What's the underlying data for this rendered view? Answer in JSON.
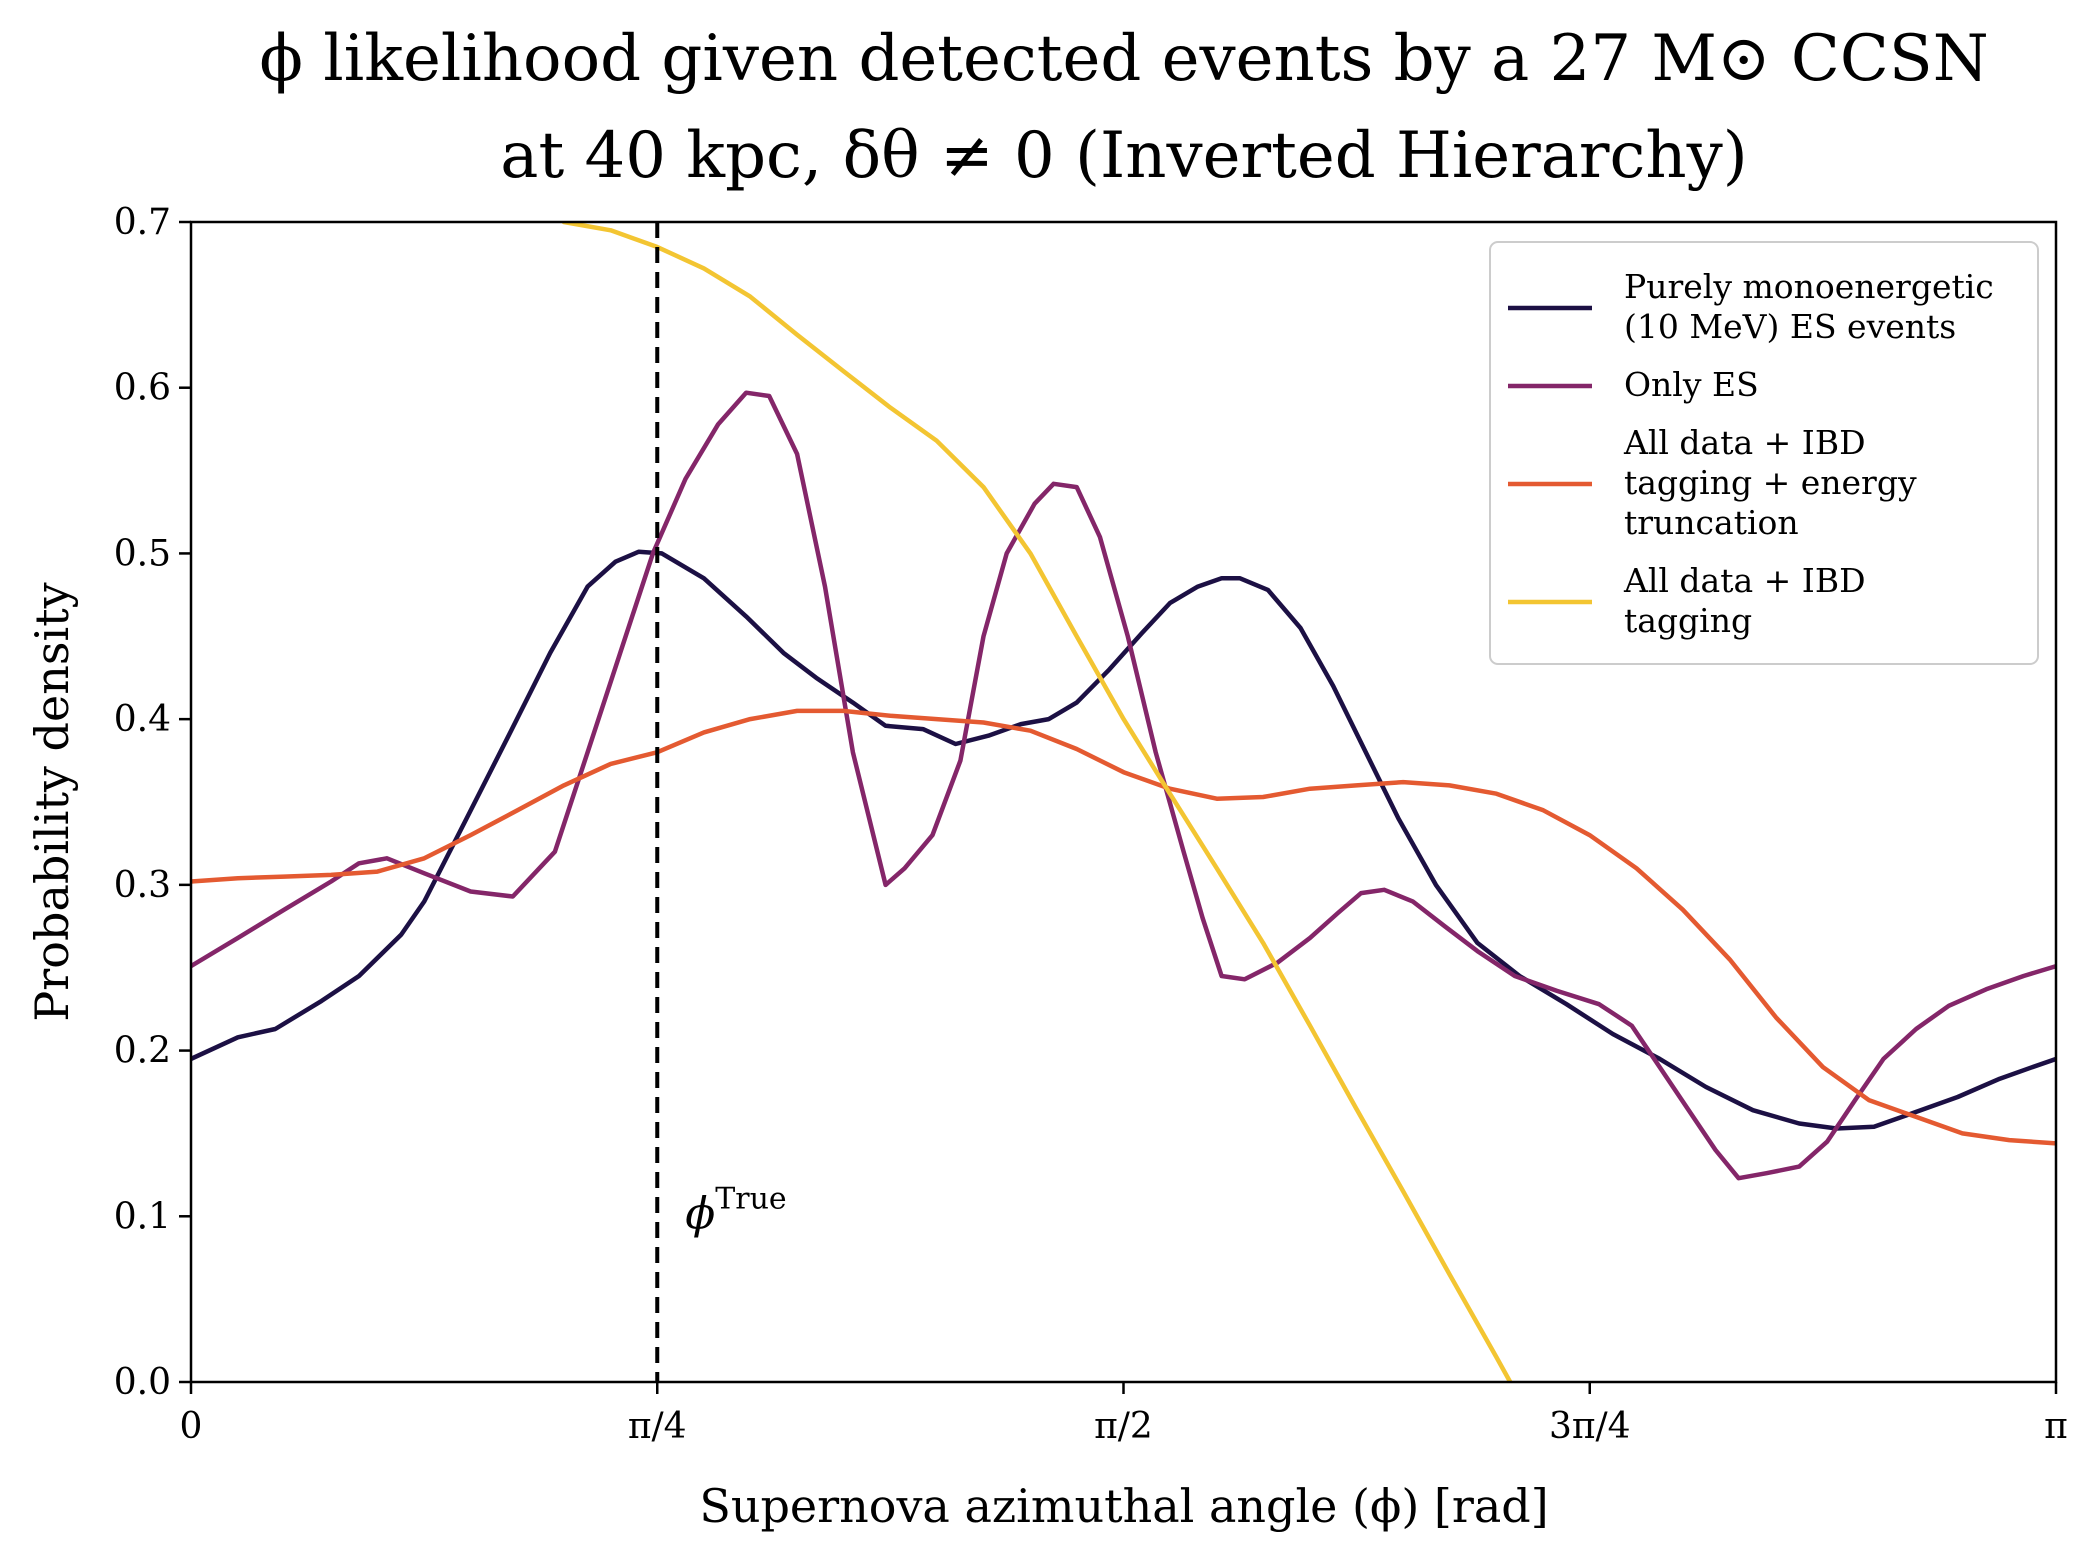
{
  "chart_data": {
    "type": "line",
    "title_lines": [
      "ϕ likelihood given detected events by a 27 M⊙ CCSN",
      "at 40 kpc, δθ ≠ 0 (Inverted Hierarchy)"
    ],
    "xlabel": "Supernova azimuthal angle (ϕ) [rad]",
    "ylabel": "Probability density",
    "xlim": [
      0,
      3.14159
    ],
    "ylim": [
      0,
      0.7
    ],
    "x_ticks": [
      {
        "value": 0,
        "label": "0"
      },
      {
        "value": 0.7854,
        "label": "π/4"
      },
      {
        "value": 1.5708,
        "label": "π/2"
      },
      {
        "value": 2.3562,
        "label": "3π/4"
      },
      {
        "value": 3.14159,
        "label": "π"
      }
    ],
    "y_ticks": [
      {
        "value": 0.0,
        "label": "0.0"
      },
      {
        "value": 0.1,
        "label": "0.1"
      },
      {
        "value": 0.2,
        "label": "0.2"
      },
      {
        "value": 0.3,
        "label": "0.3"
      },
      {
        "value": 0.4,
        "label": "0.4"
      },
      {
        "value": 0.5,
        "label": "0.5"
      },
      {
        "value": 0.6,
        "label": "0.6"
      },
      {
        "value": 0.7,
        "label": "0.7"
      }
    ],
    "grid": false,
    "legend_position": "top-right",
    "vline": {
      "x": 0.7854,
      "style": "dashed",
      "color": "#000000",
      "label_base": "ϕ",
      "label_sup": "True"
    },
    "series": [
      {
        "name": "Purely monoenergetic (10 MeV) ES events",
        "legend_lines": [
          "Purely monoenergetic",
          "(10 MeV) ES events"
        ],
        "color": "#1c1044",
        "points": [
          [
            0,
            0.195
          ],
          [
            0.079,
            0.208
          ],
          [
            0.142,
            0.213
          ],
          [
            0.22,
            0.23
          ],
          [
            0.283,
            0.245
          ],
          [
            0.354,
            0.27
          ],
          [
            0.393,
            0.29
          ],
          [
            0.464,
            0.34
          ],
          [
            0.535,
            0.39
          ],
          [
            0.605,
            0.44
          ],
          [
            0.668,
            0.48
          ],
          [
            0.715,
            0.495
          ],
          [
            0.754,
            0.501
          ],
          [
            0.793,
            0.5
          ],
          [
            0.864,
            0.485
          ],
          [
            0.935,
            0.462
          ],
          [
            0.998,
            0.44
          ],
          [
            1.053,
            0.425
          ],
          [
            1.115,
            0.41
          ],
          [
            1.17,
            0.396
          ],
          [
            1.233,
            0.394
          ],
          [
            1.288,
            0.385
          ],
          [
            1.343,
            0.39
          ],
          [
            1.398,
            0.397
          ],
          [
            1.445,
            0.4
          ],
          [
            1.492,
            0.41
          ],
          [
            1.547,
            0.43
          ],
          [
            1.602,
            0.452
          ],
          [
            1.649,
            0.47
          ],
          [
            1.696,
            0.48
          ],
          [
            1.736,
            0.485
          ],
          [
            1.767,
            0.485
          ],
          [
            1.814,
            0.478
          ],
          [
            1.869,
            0.455
          ],
          [
            1.924,
            0.42
          ],
          [
            1.979,
            0.38
          ],
          [
            2.034,
            0.34
          ],
          [
            2.097,
            0.3
          ],
          [
            2.167,
            0.265
          ],
          [
            2.238,
            0.245
          ],
          [
            2.317,
            0.228
          ],
          [
            2.395,
            0.21
          ],
          [
            2.474,
            0.195
          ],
          [
            2.552,
            0.178
          ],
          [
            2.631,
            0.164
          ],
          [
            2.709,
            0.156
          ],
          [
            2.772,
            0.153
          ],
          [
            2.835,
            0.154
          ],
          [
            2.906,
            0.163
          ],
          [
            2.976,
            0.172
          ],
          [
            3.047,
            0.183
          ],
          [
            3.102,
            0.19
          ],
          [
            3.142,
            0.195
          ]
        ]
      },
      {
        "name": "Only ES",
        "legend_lines": [
          "Only ES"
        ],
        "color": "#842669",
        "points": [
          [
            0,
            0.251
          ],
          [
            0.079,
            0.268
          ],
          [
            0.157,
            0.285
          ],
          [
            0.236,
            0.302
          ],
          [
            0.283,
            0.313
          ],
          [
            0.33,
            0.316
          ],
          [
            0.393,
            0.307
          ],
          [
            0.471,
            0.296
          ],
          [
            0.542,
            0.293
          ],
          [
            0.613,
            0.32
          ],
          [
            0.668,
            0.38
          ],
          [
            0.723,
            0.44
          ],
          [
            0.778,
            0.5
          ],
          [
            0.833,
            0.545
          ],
          [
            0.888,
            0.578
          ],
          [
            0.935,
            0.597
          ],
          [
            0.974,
            0.595
          ],
          [
            1.021,
            0.56
          ],
          [
            1.068,
            0.48
          ],
          [
            1.115,
            0.38
          ],
          [
            1.17,
            0.3
          ],
          [
            1.202,
            0.31
          ],
          [
            1.249,
            0.33
          ],
          [
            1.296,
            0.375
          ],
          [
            1.335,
            0.45
          ],
          [
            1.374,
            0.5
          ],
          [
            1.421,
            0.53
          ],
          [
            1.453,
            0.542
          ],
          [
            1.492,
            0.54
          ],
          [
            1.531,
            0.51
          ],
          [
            1.578,
            0.45
          ],
          [
            1.625,
            0.38
          ],
          [
            1.672,
            0.32
          ],
          [
            1.704,
            0.28
          ],
          [
            1.736,
            0.245
          ],
          [
            1.775,
            0.243
          ],
          [
            1.83,
            0.253
          ],
          [
            1.885,
            0.268
          ],
          [
            1.932,
            0.283
          ],
          [
            1.971,
            0.295
          ],
          [
            2.01,
            0.297
          ],
          [
            2.058,
            0.29
          ],
          [
            2.112,
            0.275
          ],
          [
            2.167,
            0.26
          ],
          [
            2.23,
            0.245
          ],
          [
            2.301,
            0.236
          ],
          [
            2.372,
            0.228
          ],
          [
            2.427,
            0.215
          ],
          [
            2.474,
            0.19
          ],
          [
            2.521,
            0.165
          ],
          [
            2.568,
            0.14
          ],
          [
            2.607,
            0.123
          ],
          [
            2.654,
            0.126
          ],
          [
            2.709,
            0.13
          ],
          [
            2.756,
            0.145
          ],
          [
            2.803,
            0.17
          ],
          [
            2.851,
            0.195
          ],
          [
            2.906,
            0.213
          ],
          [
            2.961,
            0.227
          ],
          [
            3.024,
            0.237
          ],
          [
            3.087,
            0.245
          ],
          [
            3.142,
            0.251
          ]
        ]
      },
      {
        "name": "All data + IBD tagging + energy truncation",
        "legend_lines": [
          "All data + IBD",
          "tagging + energy",
          "truncation"
        ],
        "color": "#e45a31",
        "points": [
          [
            0,
            0.302
          ],
          [
            0.079,
            0.304
          ],
          [
            0.157,
            0.305
          ],
          [
            0.236,
            0.306
          ],
          [
            0.314,
            0.308
          ],
          [
            0.393,
            0.316
          ],
          [
            0.471,
            0.33
          ],
          [
            0.55,
            0.345
          ],
          [
            0.628,
            0.36
          ],
          [
            0.707,
            0.373
          ],
          [
            0.785,
            0.38
          ],
          [
            0.864,
            0.392
          ],
          [
            0.942,
            0.4
          ],
          [
            1.021,
            0.405
          ],
          [
            1.099,
            0.405
          ],
          [
            1.178,
            0.402
          ],
          [
            1.256,
            0.4
          ],
          [
            1.335,
            0.398
          ],
          [
            1.414,
            0.393
          ],
          [
            1.492,
            0.382
          ],
          [
            1.571,
            0.368
          ],
          [
            1.649,
            0.358
          ],
          [
            1.728,
            0.352
          ],
          [
            1.806,
            0.353
          ],
          [
            1.885,
            0.358
          ],
          [
            1.963,
            0.36
          ],
          [
            2.042,
            0.362
          ],
          [
            2.12,
            0.36
          ],
          [
            2.199,
            0.355
          ],
          [
            2.278,
            0.345
          ],
          [
            2.356,
            0.33
          ],
          [
            2.435,
            0.31
          ],
          [
            2.513,
            0.285
          ],
          [
            2.592,
            0.255
          ],
          [
            2.67,
            0.22
          ],
          [
            2.749,
            0.19
          ],
          [
            2.827,
            0.17
          ],
          [
            2.906,
            0.16
          ],
          [
            2.984,
            0.15
          ],
          [
            3.063,
            0.146
          ],
          [
            3.142,
            0.144
          ]
        ]
      },
      {
        "name": "All data + IBD tagging",
        "legend_lines": [
          "All data + IBD",
          "tagging"
        ],
        "color": "#f3c532",
        "points": [
          [
            0.628,
            0.7
          ],
          [
            0.707,
            0.695
          ],
          [
            0.785,
            0.685
          ],
          [
            0.864,
            0.672
          ],
          [
            0.942,
            0.655
          ],
          [
            1.021,
            0.632
          ],
          [
            1.099,
            0.61
          ],
          [
            1.178,
            0.588
          ],
          [
            1.256,
            0.568
          ],
          [
            1.335,
            0.54
          ],
          [
            1.414,
            0.5
          ],
          [
            1.492,
            0.45
          ],
          [
            1.571,
            0.4
          ],
          [
            1.649,
            0.355
          ],
          [
            1.728,
            0.31
          ],
          [
            1.806,
            0.265
          ],
          [
            1.885,
            0.215
          ],
          [
            1.963,
            0.165
          ],
          [
            2.042,
            0.115
          ],
          [
            2.12,
            0.065
          ],
          [
            2.199,
            0.015
          ],
          [
            2.23,
            -0.005
          ]
        ]
      }
    ]
  }
}
